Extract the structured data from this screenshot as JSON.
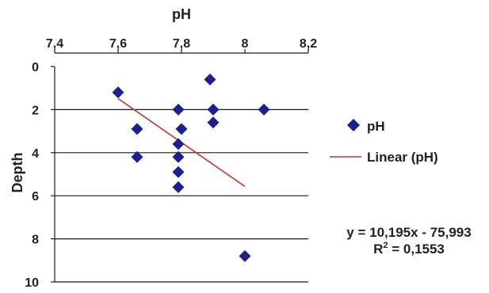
{
  "chart_data": {
    "type": "scatter",
    "title": "",
    "xlabel": "pH",
    "ylabel": "Depth",
    "x_axis_position": "top",
    "y_axis_inverted": true,
    "xlim": [
      7.4,
      8.2
    ],
    "ylim": [
      0,
      10
    ],
    "x_ticks": [
      "7,4",
      "7,6",
      "7,8",
      "8",
      "8,2"
    ],
    "x_tick_values": [
      7.4,
      7.6,
      7.8,
      8.0,
      8.2
    ],
    "y_ticks": [
      "0",
      "2",
      "4",
      "6",
      "8",
      "10"
    ],
    "y_tick_values": [
      0,
      2,
      4,
      6,
      8,
      10
    ],
    "grid": "horizontal",
    "legend_placement": "right",
    "series": [
      {
        "name": "pH",
        "kind": "scatter",
        "marker": "diamond",
        "color": "#1c1f8f",
        "points": [
          {
            "x": 7.6,
            "y": 1.2
          },
          {
            "x": 7.89,
            "y": 0.6
          },
          {
            "x": 7.79,
            "y": 2.0
          },
          {
            "x": 7.9,
            "y": 2.0
          },
          {
            "x": 8.06,
            "y": 2.0
          },
          {
            "x": 7.9,
            "y": 2.6
          },
          {
            "x": 7.66,
            "y": 2.9
          },
          {
            "x": 7.8,
            "y": 2.9
          },
          {
            "x": 7.79,
            "y": 3.6
          },
          {
            "x": 7.66,
            "y": 4.2
          },
          {
            "x": 7.79,
            "y": 4.2
          },
          {
            "x": 7.79,
            "y": 4.9
          },
          {
            "x": 7.79,
            "y": 5.6
          },
          {
            "x": 8.0,
            "y": 8.8
          }
        ]
      },
      {
        "name": "Linear (pH)",
        "kind": "trendline",
        "color": "#c0392b",
        "x_range": [
          7.6,
          8.0
        ],
        "equation": "y = 10,195x - 75,993",
        "r_squared_label": "R",
        "r_squared_exponent": "2",
        "r_squared_value": " = 0,1553",
        "slope": 10.195,
        "intercept": -75.993
      }
    ]
  }
}
